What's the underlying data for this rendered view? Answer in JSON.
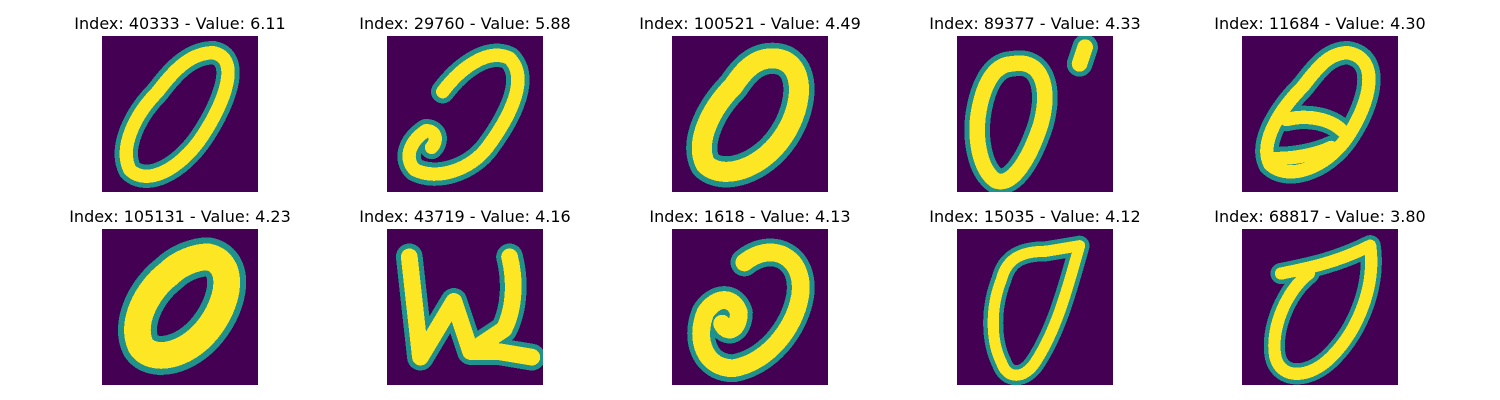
{
  "colors": {
    "background": "#440154",
    "stroke_mid": "#21918c",
    "stroke_high": "#fde725"
  },
  "samples": [
    {
      "title": "Index: 40333 - Value: 6.11",
      "index": 40333,
      "value": 6.11,
      "glyph": "zero-slanted-loop"
    },
    {
      "title": "Index: 29760 - Value: 5.88",
      "index": 29760,
      "value": 5.88,
      "glyph": "zero-open-hook"
    },
    {
      "title": "Index: 100521 - Value: 4.49",
      "index": 100521,
      "value": 4.49,
      "glyph": "zero-thick-slanted"
    },
    {
      "title": "Index: 89377 - Value: 4.33",
      "index": 89377,
      "value": 4.33,
      "glyph": "zero-with-tick"
    },
    {
      "title": "Index: 11684 - Value: 4.30",
      "index": 11684,
      "value": 4.3,
      "glyph": "zero-crossed"
    },
    {
      "title": "Index: 105131 - Value: 4.23",
      "index": 105131,
      "value": 4.23,
      "glyph": "zero-bold"
    },
    {
      "title": "Index: 43719 - Value: 4.16",
      "index": 43719,
      "value": 4.16,
      "glyph": "letter-w"
    },
    {
      "title": "Index: 1618 - Value: 4.13",
      "index": 1618,
      "value": 4.13,
      "glyph": "zero-round-bump"
    },
    {
      "title": "Index: 15035 - Value: 4.12",
      "index": 15035,
      "value": 4.12,
      "glyph": "zero-thin-narrow"
    },
    {
      "title": "Index: 68817 - Value: 3.80",
      "index": 68817,
      "value": 3.8,
      "glyph": "zero-top-stroke"
    }
  ]
}
